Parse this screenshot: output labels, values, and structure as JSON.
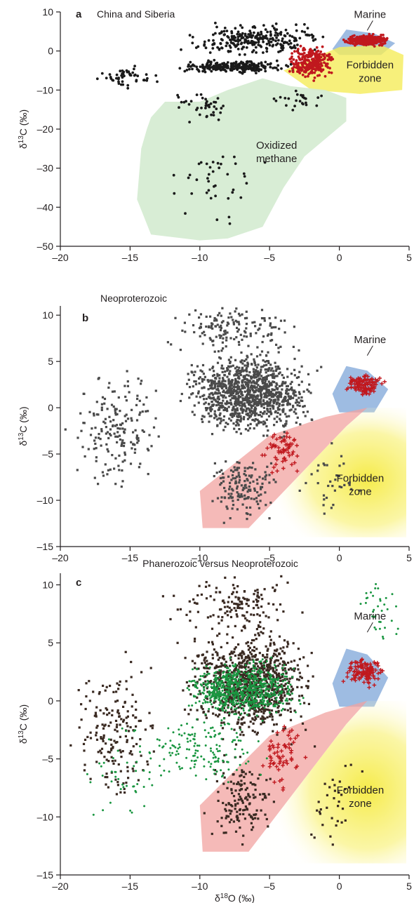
{
  "colors": {
    "black_points": "#1a1a1a",
    "gray_points": "#4a4a4a",
    "brown_points": "#3a2a22",
    "red_points": "#c0181e",
    "green_points": "#1a9641",
    "marine_fill": "#7ea6d8",
    "forbidden_fill": "#f5ea40",
    "oxidized_fill": "#d4ebd0",
    "pink_fill": "#f2a3a0",
    "axis": "#231f20"
  },
  "shared_xlabel": "δ18O (‰)",
  "chart_data": [
    {
      "type": "scatter",
      "panel": "a",
      "title": "China and Siberia",
      "xlabel": "",
      "ylabel": "δ13C (‰)",
      "xlim": [
        -20,
        5
      ],
      "ylim": [
        -50,
        10
      ],
      "xticks": [
        -20,
        -15,
        -10,
        -5,
        0,
        5
      ],
      "xtick_labels": [
        "–20",
        "–15",
        "–10",
        "–5",
        "0",
        "5"
      ],
      "yticks": [
        -50,
        -40,
        -30,
        -20,
        -10,
        0,
        10
      ],
      "ytick_labels": [
        "–50",
        "–40",
        "–30",
        "–20",
        "–10",
        "0",
        "10"
      ],
      "regions": [
        {
          "label": "Marine",
          "color": "marine_fill",
          "polygon": [
            [
              -0.5,
              0.5
            ],
            [
              0.5,
              5.5
            ],
            [
              2.5,
              4.5
            ],
            [
              4,
              2
            ],
            [
              3,
              -1
            ],
            [
              0,
              -1
            ]
          ],
          "label_at": [
            2.2,
            8.5
          ]
        },
        {
          "label": "Forbidden zone",
          "color": "forbidden_fill",
          "polygon": [
            [
              -4,
              -5
            ],
            [
              0,
              1
            ],
            [
              3,
              1.5
            ],
            [
              4.6,
              -1
            ],
            [
              4.5,
              -10
            ],
            [
              1.5,
              -11
            ],
            [
              -2,
              -10
            ]
          ],
          "label_at": [
            2.2,
            -4.5
          ]
        },
        {
          "label": "Oxidized methane",
          "color": "oxidized_fill",
          "polygon": [
            [
              -13.5,
              -17
            ],
            [
              -12.5,
              -13
            ],
            [
              -10,
              -13
            ],
            [
              -8,
              -10
            ],
            [
              -5.5,
              -7
            ],
            [
              -3.5,
              -9
            ],
            [
              -1,
              -10
            ],
            [
              0.5,
              -12
            ],
            [
              0.5,
              -18
            ],
            [
              -1.5,
              -24
            ],
            [
              -2.5,
              -27
            ],
            [
              -4,
              -35
            ],
            [
              -5.5,
              -45
            ],
            [
              -8,
              -48
            ],
            [
              -10,
              -48.5
            ],
            [
              -13.5,
              -47
            ],
            [
              -14.5,
              -38
            ],
            [
              -14.2,
              -25
            ],
            [
              -13.8,
              -20
            ]
          ],
          "label_at": [
            -4.5,
            -25
          ]
        }
      ],
      "series": [
        {
          "color": "black_points",
          "marker": "circle",
          "clusters": [
            {
              "xmin": -12,
              "xmax": -3,
              "ymin": -6,
              "ymax": -2,
              "n": 260
            },
            {
              "xmin": -12,
              "xmax": 0,
              "ymin": -2,
              "ymax": 8,
              "n": 260
            },
            {
              "xmin": -18,
              "xmax": -12,
              "ymin": -10,
              "ymax": -3,
              "n": 50
            },
            {
              "xmin": -13,
              "xmax": -7,
              "ymin": -20,
              "ymax": -8,
              "n": 40
            },
            {
              "xmin": -13.5,
              "xmax": -4,
              "ymin": -48,
              "ymax": -20,
              "n": 40
            },
            {
              "xmin": -5,
              "xmax": -1,
              "ymin": -18,
              "ymax": -8,
              "n": 25
            }
          ]
        },
        {
          "color": "red_points",
          "marker": "circle",
          "clusters": [
            {
              "xmin": -4,
              "xmax": 0,
              "ymin": -8,
              "ymax": 2,
              "n": 260
            },
            {
              "xmin": 0,
              "xmax": 3.8,
              "ymin": 1,
              "ymax": 4.5,
              "n": 280
            }
          ]
        }
      ]
    },
    {
      "type": "scatter",
      "panel": "b",
      "title": "Neoproterozoic",
      "xlabel": "",
      "ylabel": "δ13C (‰)",
      "xlim": [
        -20,
        5
      ],
      "ylim": [
        -15,
        11
      ],
      "xticks": [
        -20,
        -15,
        -10,
        -5,
        0,
        5
      ],
      "xtick_labels": [
        "–20",
        "–15",
        "–10",
        "–5",
        "0",
        "5"
      ],
      "yticks": [
        -15,
        -10,
        -5,
        0,
        5,
        10
      ],
      "ytick_labels": [
        "–15",
        "–10",
        "–5",
        "0",
        "5",
        "10"
      ],
      "regions": [
        {
          "label": "Marine",
          "color": "marine_fill",
          "polygon": [
            [
              -0.5,
              1.5
            ],
            [
              0.5,
              4.5
            ],
            [
              2,
              4
            ],
            [
              3.5,
              2
            ],
            [
              2.5,
              -0.5
            ],
            [
              0,
              -0.5
            ]
          ],
          "label_at": [
            2.2,
            7
          ]
        },
        {
          "label": "Forbidden zone",
          "color": "forbidden_fill",
          "polygon": [
            [
              -6.5,
              -13
            ],
            [
              0.5,
              -2
            ],
            [
              2,
              0
            ],
            [
              4.8,
              0
            ],
            [
              4.8,
              -14
            ],
            [
              -6.5,
              -14
            ]
          ],
          "label_at": [
            1.5,
            -8
          ]
        },
        {
          "label": "",
          "color": "pink_fill",
          "polygon": [
            [
              -10,
              -9
            ],
            [
              -5,
              -3
            ],
            [
              -1,
              -1
            ],
            [
              2,
              0
            ],
            [
              0.5,
              -2
            ],
            [
              -6.5,
              -13
            ],
            [
              -9.8,
              -13
            ]
          ],
          "label_at": null
        }
      ],
      "series": [
        {
          "color": "gray_points",
          "marker": "square",
          "clusters": [
            {
              "xmin": -12,
              "xmax": -1,
              "ymin": -4,
              "ymax": 7,
              "n": 1100
            },
            {
              "xmin": -20,
              "xmax": -12,
              "ymin": -10,
              "ymax": 5,
              "n": 180
            },
            {
              "xmin": -13,
              "xmax": -2,
              "ymin": 5,
              "ymax": 11.5,
              "n": 150
            },
            {
              "xmin": -10,
              "xmax": -4,
              "ymin": -13,
              "ymax": -4,
              "n": 150
            },
            {
              "xmin": -3,
              "xmax": 2,
              "ymin": -14,
              "ymax": -3,
              "n": 35
            }
          ]
        },
        {
          "color": "red_points",
          "marker": "cross",
          "clusters": [
            {
              "xmin": 0,
              "xmax": 3.5,
              "ymin": 1,
              "ymax": 4,
              "n": 120
            },
            {
              "xmin": -6,
              "xmax": -2,
              "ymin": -8,
              "ymax": -1,
              "n": 60
            }
          ]
        }
      ]
    },
    {
      "type": "scatter",
      "panel": "c",
      "title": "Phanerozoic versus Neoproterozoic",
      "xlabel": "δ18O (‰)",
      "ylabel": "δ13C (‰)",
      "xlim": [
        -20,
        5
      ],
      "ylim": [
        -15,
        11
      ],
      "xticks": [
        -20,
        -15,
        -10,
        -5,
        0,
        5
      ],
      "xtick_labels": [
        "–20",
        "–15",
        "–10",
        "–5",
        "0",
        "5"
      ],
      "yticks": [
        -15,
        -10,
        -5,
        0,
        5,
        10
      ],
      "ytick_labels": [
        "–15",
        "–10",
        "–5",
        "0",
        "5",
        "10"
      ],
      "regions": [
        {
          "label": "Marine",
          "color": "marine_fill",
          "polygon": [
            [
              -0.5,
              1.5
            ],
            [
              0.5,
              4.5
            ],
            [
              2,
              4
            ],
            [
              3.5,
              2
            ],
            [
              2.5,
              -0.5
            ],
            [
              0,
              -0.5
            ]
          ],
          "label_at": [
            2.2,
            7
          ]
        },
        {
          "label": "Forbidden zone",
          "color": "forbidden_fill",
          "polygon": [
            [
              -6.5,
              -13
            ],
            [
              0.5,
              -2
            ],
            [
              2,
              0
            ],
            [
              4.8,
              0
            ],
            [
              4.8,
              -14
            ],
            [
              -6.5,
              -14
            ]
          ],
          "label_at": [
            1.5,
            -8
          ]
        },
        {
          "label": "",
          "color": "pink_fill",
          "polygon": [
            [
              -10,
              -9
            ],
            [
              -5,
              -3
            ],
            [
              -1,
              -1
            ],
            [
              2,
              0
            ],
            [
              0.5,
              -2
            ],
            [
              -6.5,
              -13
            ],
            [
              -9.8,
              -13
            ]
          ],
          "label_at": null
        }
      ],
      "series": [
        {
          "color": "brown_points",
          "marker": "square",
          "clusters": [
            {
              "xmin": -12,
              "xmax": -1,
              "ymin": -4,
              "ymax": 7,
              "n": 1000
            },
            {
              "xmin": -20,
              "xmax": -12,
              "ymin": -10,
              "ymax": 5,
              "n": 180
            },
            {
              "xmin": -13,
              "xmax": -2,
              "ymin": 5,
              "ymax": 11.5,
              "n": 150
            },
            {
              "xmin": -10,
              "xmax": -4,
              "ymin": -13,
              "ymax": -4,
              "n": 150
            },
            {
              "xmin": -3,
              "xmax": 2,
              "ymin": -14,
              "ymax": -3,
              "n": 35
            }
          ]
        },
        {
          "color": "green_points",
          "marker": "circle",
          "clusters": [
            {
              "xmin": -12,
              "xmax": -2,
              "ymin": -2,
              "ymax": 4,
              "n": 700
            },
            {
              "xmin": -16,
              "xmax": -4,
              "ymin": -8,
              "ymax": 0,
              "n": 160
            },
            {
              "xmin": -19,
              "xmax": -12,
              "ymin": -14,
              "ymax": 0,
              "n": 40
            },
            {
              "xmin": 1,
              "xmax": 4.8,
              "ymin": 4,
              "ymax": 11.5,
              "n": 35
            }
          ]
        },
        {
          "color": "red_points",
          "marker": "cross",
          "clusters": [
            {
              "xmin": 0,
              "xmax": 3.5,
              "ymin": 1,
              "ymax": 4,
              "n": 120
            },
            {
              "xmin": -6,
              "xmax": -2,
              "ymin": -8,
              "ymax": -1,
              "n": 60
            }
          ]
        }
      ]
    }
  ]
}
